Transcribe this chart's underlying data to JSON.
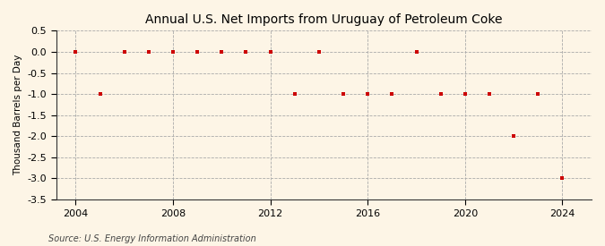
{
  "title": "Annual U.S. Net Imports from Uruguay of Petroleum Coke",
  "ylabel": "Thousand Barrels per Day",
  "source": "Source: U.S. Energy Information Administration",
  "years": [
    2004,
    2005,
    2006,
    2007,
    2008,
    2009,
    2010,
    2011,
    2012,
    2013,
    2014,
    2015,
    2016,
    2017,
    2018,
    2019,
    2020,
    2021,
    2022,
    2023,
    2024
  ],
  "values": [
    0,
    -1,
    0,
    0,
    0,
    0,
    0,
    0,
    0,
    -1,
    0,
    -1,
    -1,
    -1,
    0,
    -1,
    -1,
    -1,
    -2,
    -1,
    -3
  ],
  "ylim": [
    -3.5,
    0.5
  ],
  "yticks": [
    0.5,
    0.0,
    -0.5,
    -1.0,
    -1.5,
    -2.0,
    -2.5,
    -3.0,
    -3.5
  ],
  "xticks": [
    2004,
    2008,
    2012,
    2016,
    2020,
    2024
  ],
  "marker_color": "#cc0000",
  "marker": "s",
  "marker_size": 3,
  "grid_color": "#aaaaaa",
  "bg_color": "#fdf5e6",
  "title_fontsize": 10,
  "label_fontsize": 7.5,
  "tick_fontsize": 8,
  "source_fontsize": 7
}
